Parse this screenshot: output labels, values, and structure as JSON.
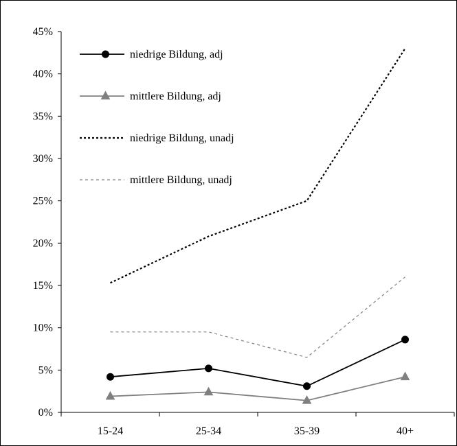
{
  "chart_data": {
    "type": "line",
    "title": "",
    "xlabel": "",
    "ylabel": "",
    "categories": [
      "15-24",
      "25-34",
      "35-39",
      "40+"
    ],
    "ylim": [
      0,
      45
    ],
    "yticks": [
      0,
      5,
      10,
      15,
      20,
      25,
      30,
      35,
      40,
      45
    ],
    "ytick_labels": [
      "0%",
      "5%",
      "10%",
      "15%",
      "20%",
      "25%",
      "30%",
      "35%",
      "40%",
      "45%"
    ],
    "grid": false,
    "legend_position": "top-left",
    "series": [
      {
        "name": "niedrige Bildung, adj",
        "values": [
          4.2,
          5.2,
          3.1,
          8.6
        ],
        "color": "#000000",
        "line": "solid",
        "marker": "circle"
      },
      {
        "name": "mittlere Bildung, adj",
        "values": [
          1.9,
          2.4,
          1.4,
          4.2
        ],
        "color": "#808080",
        "line": "solid",
        "marker": "triangle"
      },
      {
        "name": "niedrige Bildung, unadj",
        "values": [
          15.3,
          20.8,
          25.0,
          43.0
        ],
        "color": "#000000",
        "line": "dotted",
        "marker": "none"
      },
      {
        "name": "mittlere Bildung, unadj",
        "values": [
          9.5,
          9.5,
          6.5,
          16.0
        ],
        "color": "#808080",
        "line": "dashed",
        "marker": "none"
      }
    ]
  }
}
